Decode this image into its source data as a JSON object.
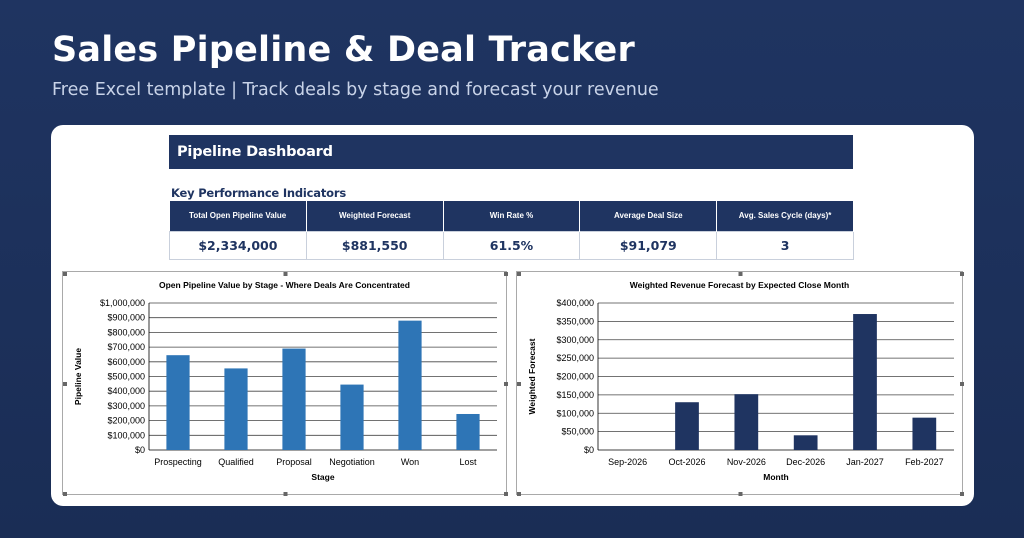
{
  "hero": {
    "title": "Sales Pipeline & Deal Tracker",
    "subtitle": "Free Excel template  |  Track deals by stage and forecast your revenue"
  },
  "dashboard": {
    "header": "Pipeline Dashboard",
    "kpi_section_title": "Key Performance Indicators",
    "kpis": [
      {
        "label": "Total Open Pipeline Value",
        "value": "$2,334,000"
      },
      {
        "label": "Weighted Forecast",
        "value": "$881,550"
      },
      {
        "label": "Win Rate %",
        "value": "61.5%"
      },
      {
        "label": "Average Deal Size",
        "value": "$91,079"
      },
      {
        "label": "Avg. Sales Cycle (days)*",
        "value": "3"
      }
    ]
  },
  "colors": {
    "navy": "#1f3461",
    "bar_blue": "#2e75b6",
    "bar_navy": "#1f3461"
  },
  "chart_data": [
    {
      "type": "bar",
      "title": "Open Pipeline Value by Stage - Where Deals Are Concentrated",
      "xlabel": "Stage",
      "ylabel": "Pipeline Value",
      "categories": [
        "Prospecting",
        "Qualified",
        "Proposal",
        "Negotiation",
        "Won",
        "Lost"
      ],
      "values": [
        645000,
        555000,
        690000,
        445000,
        880000,
        245000
      ],
      "ylim": [
        0,
        1000000
      ],
      "yticks": [
        "$0",
        "$100,000",
        "$200,000",
        "$300,000",
        "$400,000",
        "$500,000",
        "$600,000",
        "$700,000",
        "$800,000",
        "$900,000",
        "$1,000,000"
      ],
      "grid": true,
      "color": "#2e75b6"
    },
    {
      "type": "bar",
      "title": "Weighted Revenue Forecast by Expected Close Month",
      "xlabel": "Month",
      "ylabel": "Weighted Forecast",
      "categories": [
        "Sep-2026",
        "Oct-2026",
        "Nov-2026",
        "Dec-2026",
        "Jan-2027",
        "Feb-2027"
      ],
      "values": [
        0,
        130000,
        152000,
        40000,
        370000,
        88000
      ],
      "ylim": [
        0,
        400000
      ],
      "yticks": [
        "$0",
        "$50,000",
        "$100,000",
        "$150,000",
        "$200,000",
        "$250,000",
        "$300,000",
        "$350,000",
        "$400,000"
      ],
      "grid": true,
      "color": "#1f3461"
    }
  ]
}
